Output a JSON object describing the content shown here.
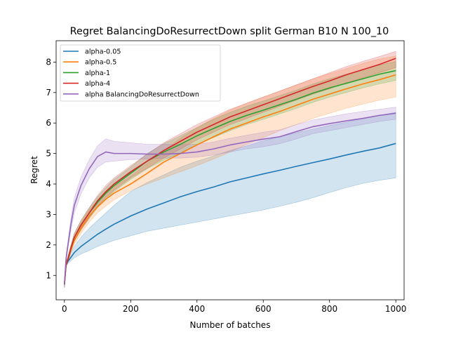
{
  "chart_data": {
    "type": "line",
    "title": "Regret BalancingDoResurrectDown split German B10 N 100_10",
    "xlabel": "Number of batches",
    "ylabel": "Regret",
    "xlim": [
      -25,
      1025
    ],
    "ylim": [
      0.2,
      8.7
    ],
    "xticks": [
      0,
      200,
      400,
      600,
      800,
      1000
    ],
    "yticks": [
      1,
      2,
      3,
      4,
      5,
      6,
      7,
      8
    ],
    "grid": false,
    "legend_position": "upper-left",
    "band_opacity": 0.2,
    "x": [
      0,
      5,
      10,
      20,
      30,
      50,
      75,
      100,
      125,
      150,
      200,
      250,
      300,
      350,
      400,
      450,
      500,
      550,
      600,
      650,
      700,
      750,
      800,
      850,
      900,
      950,
      1000
    ],
    "series": [
      {
        "name": "alpha-0.05",
        "color": "#1f77b4",
        "values": [
          0.7,
          1.35,
          1.45,
          1.6,
          1.75,
          1.95,
          2.15,
          2.35,
          2.52,
          2.68,
          2.95,
          3.18,
          3.38,
          3.58,
          3.75,
          3.9,
          4.07,
          4.2,
          4.33,
          4.45,
          4.58,
          4.7,
          4.82,
          4.95,
          5.07,
          5.18,
          5.33
        ],
        "lower": [
          0.6,
          1.3,
          1.38,
          1.48,
          1.58,
          1.7,
          1.82,
          1.95,
          2.05,
          2.15,
          2.3,
          2.45,
          2.55,
          2.65,
          2.75,
          2.85,
          2.95,
          3.05,
          3.15,
          3.27,
          3.4,
          3.55,
          3.72,
          3.88,
          4.02,
          4.12,
          4.2
        ],
        "upper": [
          0.8,
          1.45,
          1.55,
          1.75,
          1.95,
          2.25,
          2.55,
          2.8,
          3.05,
          3.3,
          3.75,
          4.05,
          4.3,
          4.55,
          4.75,
          4.92,
          5.1,
          5.25,
          5.42,
          5.55,
          5.68,
          5.8,
          5.92,
          6.02,
          6.15,
          6.25,
          6.35
        ]
      },
      {
        "name": "alpha-0.5",
        "color": "#ff7f0e",
        "values": [
          0.7,
          1.35,
          1.5,
          1.85,
          2.15,
          2.55,
          2.95,
          3.25,
          3.5,
          3.7,
          4.0,
          4.35,
          4.72,
          5.0,
          5.28,
          5.55,
          5.8,
          6.0,
          6.2,
          6.38,
          6.58,
          6.78,
          6.95,
          7.12,
          7.28,
          7.42,
          7.58
        ],
        "lower": [
          0.6,
          1.3,
          1.42,
          1.75,
          2.02,
          2.38,
          2.75,
          3.05,
          3.28,
          3.48,
          3.78,
          4.0,
          4.2,
          4.4,
          4.6,
          4.82,
          5.05,
          5.3,
          5.52,
          5.75,
          5.95,
          6.15,
          6.32,
          6.48,
          6.62,
          6.75,
          6.85
        ],
        "upper": [
          0.8,
          1.42,
          1.6,
          1.95,
          2.28,
          2.72,
          3.15,
          3.45,
          3.72,
          3.92,
          4.25,
          4.68,
          5.1,
          5.5,
          5.85,
          6.15,
          6.42,
          6.65,
          6.85,
          7.05,
          7.25,
          7.45,
          7.62,
          7.78,
          7.95,
          8.1,
          8.2
        ]
      },
      {
        "name": "alpha-1",
        "color": "#2ca02c",
        "values": [
          0.7,
          1.35,
          1.5,
          1.9,
          2.25,
          2.65,
          3.05,
          3.4,
          3.7,
          3.95,
          4.35,
          4.75,
          5.05,
          5.3,
          5.58,
          5.82,
          6.05,
          6.25,
          6.42,
          6.6,
          6.78,
          6.98,
          7.15,
          7.3,
          7.45,
          7.6,
          7.72
        ],
        "lower": [
          0.6,
          1.3,
          1.42,
          1.8,
          2.12,
          2.5,
          2.88,
          3.22,
          3.5,
          3.75,
          4.15,
          4.5,
          4.78,
          5.02,
          5.3,
          5.52,
          5.75,
          5.95,
          6.12,
          6.3,
          6.48,
          6.68,
          6.85,
          7.0,
          7.15,
          7.28,
          7.4
        ],
        "upper": [
          0.8,
          1.42,
          1.6,
          2.0,
          2.38,
          2.8,
          3.22,
          3.58,
          3.88,
          4.15,
          4.55,
          5.0,
          5.32,
          5.58,
          5.85,
          6.12,
          6.35,
          6.55,
          6.72,
          6.9,
          7.08,
          7.28,
          7.45,
          7.6,
          7.75,
          7.9,
          8.02
        ]
      },
      {
        "name": "alpha-4",
        "color": "#d62728",
        "values": [
          0.7,
          1.35,
          1.5,
          1.9,
          2.25,
          2.65,
          3.05,
          3.45,
          3.75,
          4.0,
          4.4,
          4.75,
          5.1,
          5.4,
          5.7,
          5.95,
          6.2,
          6.4,
          6.6,
          6.8,
          7.0,
          7.2,
          7.38,
          7.58,
          7.75,
          7.92,
          8.12
        ],
        "lower": [
          0.6,
          1.3,
          1.42,
          1.8,
          2.12,
          2.5,
          2.88,
          3.28,
          3.55,
          3.8,
          4.2,
          4.52,
          4.85,
          5.15,
          5.45,
          5.7,
          5.95,
          6.15,
          6.35,
          6.55,
          6.75,
          6.95,
          7.12,
          7.32,
          7.48,
          7.65,
          7.82
        ],
        "upper": [
          0.8,
          1.42,
          1.6,
          2.0,
          2.38,
          2.8,
          3.22,
          3.62,
          3.95,
          4.2,
          4.6,
          4.98,
          5.35,
          5.65,
          5.95,
          6.2,
          6.45,
          6.65,
          6.85,
          7.05,
          7.25,
          7.45,
          7.65,
          7.85,
          8.02,
          8.18,
          8.35
        ]
      },
      {
        "name": "alpha BalancingDoResurrectDown",
        "color": "#9467bd",
        "values": [
          0.7,
          1.55,
          1.95,
          2.7,
          3.3,
          3.95,
          4.5,
          4.9,
          5.05,
          5.0,
          5.0,
          4.98,
          4.98,
          5.0,
          5.05,
          5.15,
          5.28,
          5.38,
          5.47,
          5.55,
          5.72,
          5.88,
          5.98,
          6.07,
          6.15,
          6.25,
          6.32
        ],
        "lower": [
          0.6,
          1.45,
          1.82,
          2.5,
          3.05,
          3.68,
          4.2,
          4.55,
          4.72,
          4.75,
          4.8,
          4.82,
          4.85,
          4.85,
          4.88,
          4.95,
          5.05,
          5.15,
          5.22,
          5.32,
          5.48,
          5.65,
          5.75,
          5.85,
          5.95,
          6.05,
          6.12
        ],
        "upper": [
          0.8,
          1.65,
          2.08,
          2.9,
          3.55,
          4.22,
          4.8,
          5.25,
          5.48,
          5.4,
          5.35,
          5.3,
          5.3,
          5.3,
          5.3,
          5.38,
          5.5,
          5.6,
          5.7,
          5.78,
          5.95,
          6.1,
          6.2,
          6.3,
          6.38,
          6.45,
          6.52
        ]
      }
    ]
  }
}
